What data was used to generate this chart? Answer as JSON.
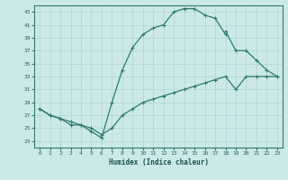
{
  "xlabel": "Humidex (Indice chaleur)",
  "bg_color": "#cce8e8",
  "line_color": "#2e7b6e",
  "grid_color": "#b0d4d4",
  "xlim": [
    -0.5,
    23.5
  ],
  "ylim": [
    22,
    44
  ],
  "xticks": [
    0,
    1,
    2,
    3,
    4,
    5,
    6,
    7,
    8,
    9,
    10,
    11,
    12,
    13,
    14,
    15,
    16,
    17,
    18,
    19,
    20,
    21,
    22,
    23
  ],
  "yticks": [
    23,
    25,
    27,
    29,
    31,
    33,
    35,
    37,
    39,
    41,
    43
  ],
  "curve1_x": [
    0,
    1,
    2,
    3,
    4,
    5,
    6,
    7,
    8,
    9,
    10,
    11,
    12,
    13,
    14,
    15,
    16,
    17,
    18
  ],
  "curve1_y": [
    28,
    27,
    26.5,
    25.5,
    25.5,
    24.5,
    23.5,
    29,
    34,
    37.5,
    39.5,
    40.5,
    41,
    43,
    43.5,
    43.5,
    42.5,
    42,
    39.5
  ],
  "curve2_x": [
    18,
    19,
    20,
    21,
    22,
    23
  ],
  "curve2_y": [
    40,
    37,
    37,
    35.5,
    34,
    33
  ],
  "curve3_x": [
    0,
    1,
    2,
    3,
    4,
    5,
    6,
    7,
    8,
    9,
    10,
    11,
    12,
    13,
    14,
    15,
    16,
    17,
    18,
    19,
    20,
    21,
    22,
    23
  ],
  "curve3_y": [
    28,
    27,
    26.5,
    26,
    25.5,
    25,
    24,
    25,
    27,
    28,
    29,
    29.5,
    30,
    30.5,
    31,
    31.5,
    32,
    32.5,
    33,
    31,
    33,
    33,
    33,
    33
  ]
}
